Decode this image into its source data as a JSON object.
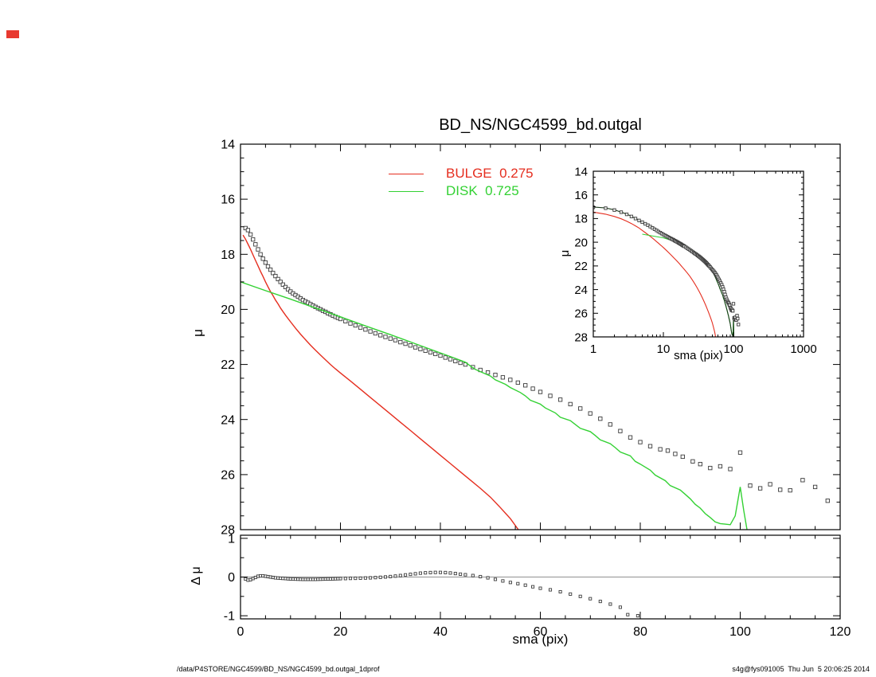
{
  "title": "BD_NS/NGC4599_bd.outgal",
  "labels": {
    "mu": "μ",
    "delta_mu": "Δ μ",
    "sma": "sma (pix)"
  },
  "legend": [
    {
      "label": "BULGE  0.275",
      "color_key": "bulge"
    },
    {
      "label": "DISK  0.725",
      "color_key": "disk"
    }
  ],
  "footer": {
    "left": "/data/P4STORE/NGC4599/BD_NS/NGC4599_bd.outgal_1dprof",
    "right": "s4g@fys091005  Thu Jun  5 20:06:25 2014"
  },
  "colors": {
    "bulge": "#e52e1f",
    "disk": "#33d133",
    "total": "#1d3b1d",
    "marker": "#3a3a3a",
    "axis": "#000000",
    "zero_line": "#a0a0a0",
    "artifact_red": "#e8392f"
  },
  "series_data": {
    "observed": [
      [
        1,
        17.05
      ],
      [
        1.5,
        17.12
      ],
      [
        2,
        17.28
      ],
      [
        2.5,
        17.46
      ],
      [
        3,
        17.64
      ],
      [
        3.5,
        17.82
      ],
      [
        4,
        18.0
      ],
      [
        4.5,
        18.16
      ],
      [
        5,
        18.3
      ],
      [
        5.5,
        18.44
      ],
      [
        6,
        18.56
      ],
      [
        6.5,
        18.68
      ],
      [
        7,
        18.79
      ],
      [
        7.5,
        18.9
      ],
      [
        8,
        19.0
      ],
      [
        8.5,
        19.1
      ],
      [
        9,
        19.19
      ],
      [
        9.5,
        19.27
      ],
      [
        10,
        19.35
      ],
      [
        10.5,
        19.42
      ],
      [
        11,
        19.48
      ],
      [
        11.5,
        19.54
      ],
      [
        12,
        19.6
      ],
      [
        12.5,
        19.66
      ],
      [
        13,
        19.71
      ],
      [
        13.5,
        19.76
      ],
      [
        14,
        19.81
      ],
      [
        14.5,
        19.86
      ],
      [
        15,
        19.91
      ],
      [
        15.5,
        19.96
      ],
      [
        16,
        20.0
      ],
      [
        16.5,
        20.05
      ],
      [
        17,
        20.09
      ],
      [
        17.5,
        20.14
      ],
      [
        18,
        20.18
      ],
      [
        18.5,
        20.23
      ],
      [
        19,
        20.27
      ],
      [
        19.5,
        20.31
      ],
      [
        20,
        20.35
      ],
      [
        21,
        20.43
      ],
      [
        22,
        20.51
      ],
      [
        23,
        20.58
      ],
      [
        24,
        20.66
      ],
      [
        25,
        20.73
      ],
      [
        26,
        20.8
      ],
      [
        27,
        20.87
      ],
      [
        28,
        20.94
      ],
      [
        29,
        21.0
      ],
      [
        30,
        21.06
      ],
      [
        31,
        21.12
      ],
      [
        32,
        21.19
      ],
      [
        33,
        21.25
      ],
      [
        34,
        21.31
      ],
      [
        35,
        21.38
      ],
      [
        36,
        21.44
      ],
      [
        37,
        21.5
      ],
      [
        38,
        21.56
      ],
      [
        39,
        21.62
      ],
      [
        40,
        21.68
      ],
      [
        41,
        21.75
      ],
      [
        42,
        21.81
      ],
      [
        43,
        21.88
      ],
      [
        44,
        21.94
      ],
      [
        45,
        22.0
      ],
      [
        46.5,
        22.1
      ],
      [
        48,
        22.2
      ],
      [
        49.5,
        22.29
      ],
      [
        51,
        22.38
      ],
      [
        52.5,
        22.47
      ],
      [
        54,
        22.56
      ],
      [
        55.5,
        22.66
      ],
      [
        57,
        22.76
      ],
      [
        58.5,
        22.88
      ],
      [
        60,
        23.0
      ],
      [
        62,
        23.14
      ],
      [
        64,
        23.28
      ],
      [
        66,
        23.44
      ],
      [
        68,
        23.6
      ],
      [
        70,
        23.78
      ],
      [
        72,
        23.97
      ],
      [
        74,
        24.18
      ],
      [
        76,
        24.42
      ],
      [
        78,
        24.65
      ],
      [
        80,
        24.82
      ],
      [
        82,
        24.97
      ],
      [
        84,
        25.08
      ],
      [
        85.5,
        25.13
      ],
      [
        87,
        25.25
      ],
      [
        88.5,
        25.35
      ],
      [
        90.5,
        25.52
      ],
      [
        92,
        25.62
      ],
      [
        94,
        25.76
      ],
      [
        96,
        25.7
      ],
      [
        98,
        25.8
      ],
      [
        100,
        25.2
      ],
      [
        102,
        26.4
      ],
      [
        104,
        26.5
      ],
      [
        106,
        26.35
      ],
      [
        108,
        26.55
      ],
      [
        110,
        26.57
      ],
      [
        112.5,
        26.2
      ],
      [
        115,
        26.45
      ],
      [
        117.5,
        26.95
      ]
    ],
    "bulge": [
      [
        0.5,
        17.3
      ],
      [
        1,
        17.45
      ],
      [
        1.5,
        17.63
      ],
      [
        2,
        17.82
      ],
      [
        2.5,
        18.02
      ],
      [
        3,
        18.22
      ],
      [
        3.5,
        18.42
      ],
      [
        4,
        18.62
      ],
      [
        4.5,
        18.8
      ],
      [
        5,
        19.0
      ],
      [
        5.5,
        19.18
      ],
      [
        6,
        19.35
      ],
      [
        6.5,
        19.5
      ],
      [
        7,
        19.66
      ],
      [
        7.5,
        19.8
      ],
      [
        8,
        19.95
      ],
      [
        8.5,
        20.08
      ],
      [
        9,
        20.21
      ],
      [
        9.5,
        20.33
      ],
      [
        10,
        20.45
      ],
      [
        11,
        20.68
      ],
      [
        12,
        20.9
      ],
      [
        13,
        21.1
      ],
      [
        14,
        21.3
      ],
      [
        15,
        21.48
      ],
      [
        16,
        21.66
      ],
      [
        17,
        21.83
      ],
      [
        18,
        22.0
      ],
      [
        19,
        22.16
      ],
      [
        20,
        22.31
      ],
      [
        22,
        22.6
      ],
      [
        24,
        22.9
      ],
      [
        26,
        23.2
      ],
      [
        28,
        23.5
      ],
      [
        30,
        23.8
      ],
      [
        32,
        24.1
      ],
      [
        34,
        24.4
      ],
      [
        36,
        24.7
      ],
      [
        38,
        25.0
      ],
      [
        40,
        25.3
      ],
      [
        42,
        25.6
      ],
      [
        44,
        25.9
      ],
      [
        46,
        26.2
      ],
      [
        48,
        26.5
      ],
      [
        50,
        26.82
      ],
      [
        52,
        27.2
      ],
      [
        54,
        27.6
      ],
      [
        55.8,
        28.05
      ]
    ],
    "disk": [
      [
        0,
        19.0
      ],
      [
        5,
        19.32
      ],
      [
        10,
        19.63
      ],
      [
        15,
        19.95
      ],
      [
        20,
        20.27
      ],
      [
        25,
        20.6
      ],
      [
        30,
        20.92
      ],
      [
        35,
        21.25
      ],
      [
        40,
        21.58
      ],
      [
        43,
        21.78
      ],
      [
        45,
        21.92
      ],
      [
        46,
        22.06
      ],
      [
        47,
        22.18
      ],
      [
        48,
        22.26
      ],
      [
        50,
        22.42
      ],
      [
        51,
        22.56
      ],
      [
        53,
        22.72
      ],
      [
        54,
        22.84
      ],
      [
        56,
        23.02
      ],
      [
        57,
        23.14
      ],
      [
        58,
        23.3
      ],
      [
        60,
        23.44
      ],
      [
        61,
        23.58
      ],
      [
        63,
        23.76
      ],
      [
        64,
        23.92
      ],
      [
        66,
        24.04
      ],
      [
        67,
        24.18
      ],
      [
        68,
        24.32
      ],
      [
        70,
        24.44
      ],
      [
        71,
        24.58
      ],
      [
        72,
        24.74
      ],
      [
        74,
        24.88
      ],
      [
        75,
        25.02
      ],
      [
        76,
        25.18
      ],
      [
        78,
        25.32
      ],
      [
        79,
        25.52
      ],
      [
        80,
        25.62
      ],
      [
        82,
        25.84
      ],
      [
        83,
        26.02
      ],
      [
        85,
        26.22
      ],
      [
        86,
        26.4
      ],
      [
        88,
        26.56
      ],
      [
        89,
        26.72
      ],
      [
        90,
        26.88
      ],
      [
        91,
        27.08
      ],
      [
        92,
        27.22
      ],
      [
        93,
        27.42
      ],
      [
        94,
        27.56
      ],
      [
        95,
        27.72
      ],
      [
        96,
        27.78
      ],
      [
        97,
        27.8
      ],
      [
        98,
        27.82
      ],
      [
        99,
        27.5
      ],
      [
        100,
        26.45
      ],
      [
        100.7,
        27.3
      ],
      [
        101.4,
        28.05
      ]
    ],
    "total": [
      [
        1,
        17.02
      ],
      [
        1.5,
        17.1
      ],
      [
        2,
        17.26
      ],
      [
        3,
        17.62
      ],
      [
        4,
        17.98
      ],
      [
        5,
        18.28
      ],
      [
        6,
        18.54
      ],
      [
        7,
        18.78
      ],
      [
        8,
        18.98
      ],
      [
        9,
        19.17
      ],
      [
        10,
        19.33
      ],
      [
        12,
        19.58
      ],
      [
        14,
        19.8
      ],
      [
        16,
        19.99
      ],
      [
        18,
        20.17
      ],
      [
        20,
        20.34
      ],
      [
        25,
        20.72
      ],
      [
        30,
        21.05
      ],
      [
        35,
        21.37
      ],
      [
        40,
        21.67
      ],
      [
        45,
        22.0
      ],
      [
        50,
        22.44
      ],
      [
        55,
        22.95
      ],
      [
        60,
        23.45
      ],
      [
        65,
        24.0
      ],
      [
        70,
        24.45
      ],
      [
        75,
        25.03
      ],
      [
        80,
        25.63
      ],
      [
        85,
        26.23
      ],
      [
        90,
        26.9
      ],
      [
        93,
        27.45
      ],
      [
        95,
        27.75
      ],
      [
        97,
        27.85
      ],
      [
        98.5,
        28.05
      ],
      [
        99.5,
        27.6
      ],
      [
        100,
        26.5
      ],
      [
        100.7,
        27.4
      ],
      [
        101.3,
        28.05
      ]
    ],
    "residual": [
      [
        1,
        -0.05
      ],
      [
        1.5,
        -0.08
      ],
      [
        2,
        -0.07
      ],
      [
        2.5,
        -0.04
      ],
      [
        3,
        -0.01
      ],
      [
        3.5,
        0.02
      ],
      [
        4,
        0.03
      ],
      [
        4.5,
        0.03
      ],
      [
        5,
        0.02
      ],
      [
        5.5,
        0.01
      ],
      [
        6,
        0.0
      ],
      [
        6.5,
        -0.01
      ],
      [
        7,
        -0.02
      ],
      [
        7.5,
        -0.025
      ],
      [
        8,
        -0.03
      ],
      [
        8.5,
        -0.035
      ],
      [
        9,
        -0.04
      ],
      [
        9.5,
        -0.045
      ],
      [
        10,
        -0.05
      ],
      [
        10.5,
        -0.052
      ],
      [
        11,
        -0.054
      ],
      [
        11.5,
        -0.056
      ],
      [
        12,
        -0.058
      ],
      [
        12.5,
        -0.06
      ],
      [
        13,
        -0.06
      ],
      [
        13.5,
        -0.06
      ],
      [
        14,
        -0.06
      ],
      [
        14.5,
        -0.06
      ],
      [
        15,
        -0.06
      ],
      [
        15.5,
        -0.058
      ],
      [
        16,
        -0.056
      ],
      [
        16.5,
        -0.054
      ],
      [
        17,
        -0.052
      ],
      [
        17.5,
        -0.05
      ],
      [
        18,
        -0.05
      ],
      [
        18.5,
        -0.048
      ],
      [
        19,
        -0.046
      ],
      [
        19.5,
        -0.044
      ],
      [
        20,
        -0.042
      ],
      [
        21,
        -0.04
      ],
      [
        22,
        -0.036
      ],
      [
        23,
        -0.032
      ],
      [
        24,
        -0.028
      ],
      [
        25,
        -0.024
      ],
      [
        26,
        -0.02
      ],
      [
        27,
        -0.014
      ],
      [
        28,
        -0.006
      ],
      [
        29,
        0.002
      ],
      [
        30,
        0.012
      ],
      [
        31,
        0.025
      ],
      [
        32,
        0.04
      ],
      [
        33,
        0.055
      ],
      [
        34,
        0.07
      ],
      [
        35,
        0.085
      ],
      [
        36,
        0.1
      ],
      [
        37,
        0.11
      ],
      [
        38,
        0.115
      ],
      [
        39,
        0.12
      ],
      [
        40,
        0.12
      ],
      [
        41,
        0.115
      ],
      [
        42,
        0.105
      ],
      [
        43,
        0.09
      ],
      [
        44,
        0.075
      ],
      [
        45,
        0.06
      ],
      [
        46.5,
        0.04
      ],
      [
        48,
        0.01
      ],
      [
        49.5,
        -0.02
      ],
      [
        51,
        -0.06
      ],
      [
        52.5,
        -0.1
      ],
      [
        54,
        -0.14
      ],
      [
        55.5,
        -0.17
      ],
      [
        57,
        -0.21
      ],
      [
        58.5,
        -0.25
      ],
      [
        60,
        -0.29
      ],
      [
        62,
        -0.33
      ],
      [
        64,
        -0.38
      ],
      [
        66,
        -0.44
      ],
      [
        68,
        -0.5
      ],
      [
        70,
        -0.56
      ],
      [
        72,
        -0.63
      ],
      [
        74,
        -0.7
      ],
      [
        76,
        -0.78
      ],
      [
        77.5,
        -0.97
      ],
      [
        79.5,
        -1.0
      ]
    ]
  },
  "chart_data": [
    {
      "id": "main",
      "type": "scatter",
      "xlabel": "sma (pix)",
      "ylabel": "μ",
      "xscale": "linear",
      "xlim": [
        0,
        120
      ],
      "ylim": [
        14,
        28
      ],
      "xticks": [
        0,
        20,
        40,
        60,
        80,
        100,
        120
      ],
      "x_minor_step": 5,
      "yticks": [
        14,
        16,
        18,
        20,
        22,
        24,
        26,
        28
      ],
      "y_minor_step": 0.5,
      "show_x_tick_labels": false,
      "show_y_tick_labels": true,
      "series": [
        {
          "name": "observed profile",
          "data": "observed",
          "style": "squares"
        },
        {
          "name": "bulge model",
          "data": "bulge",
          "style": "line",
          "color": "bulge"
        },
        {
          "name": "disk model",
          "data": "disk",
          "style": "line",
          "color": "disk"
        }
      ]
    },
    {
      "id": "inset",
      "type": "scatter",
      "xlabel": "sma (pix)",
      "ylabel": "μ",
      "xscale": "log",
      "xlim": [
        1,
        1000
      ],
      "ylim": [
        14,
        28
      ],
      "xticks": [
        1,
        10,
        100,
        1000
      ],
      "yticks": [
        14,
        16,
        18,
        20,
        22,
        24,
        26,
        28
      ],
      "y_minor_step": 0.5,
      "show_x_tick_labels": true,
      "show_y_tick_labels": true,
      "series": [
        {
          "name": "bulge model",
          "data": "bulge",
          "style": "line",
          "color": "bulge"
        },
        {
          "name": "disk model",
          "data": "disk",
          "style": "line",
          "color": "disk"
        },
        {
          "name": "total model",
          "data": "total",
          "style": "line",
          "color": "total"
        },
        {
          "name": "observed profile",
          "data": "observed",
          "style": "squares"
        }
      ]
    },
    {
      "id": "resid",
      "type": "scatter",
      "xlabel": "sma (pix)",
      "ylabel": "Δ μ",
      "xscale": "linear",
      "xlim": [
        0,
        120
      ],
      "ylim": [
        1.08,
        -1.08
      ],
      "xticks": [
        0,
        20,
        40,
        60,
        80,
        100,
        120
      ],
      "x_minor_step": 5,
      "yticks": [
        1,
        0,
        -1
      ],
      "y_minor_step": 0.5,
      "zero_line": true,
      "show_x_tick_labels": true,
      "show_y_tick_labels": true,
      "series": [
        {
          "name": "residuals",
          "data": "residual",
          "style": "squares"
        }
      ]
    }
  ]
}
